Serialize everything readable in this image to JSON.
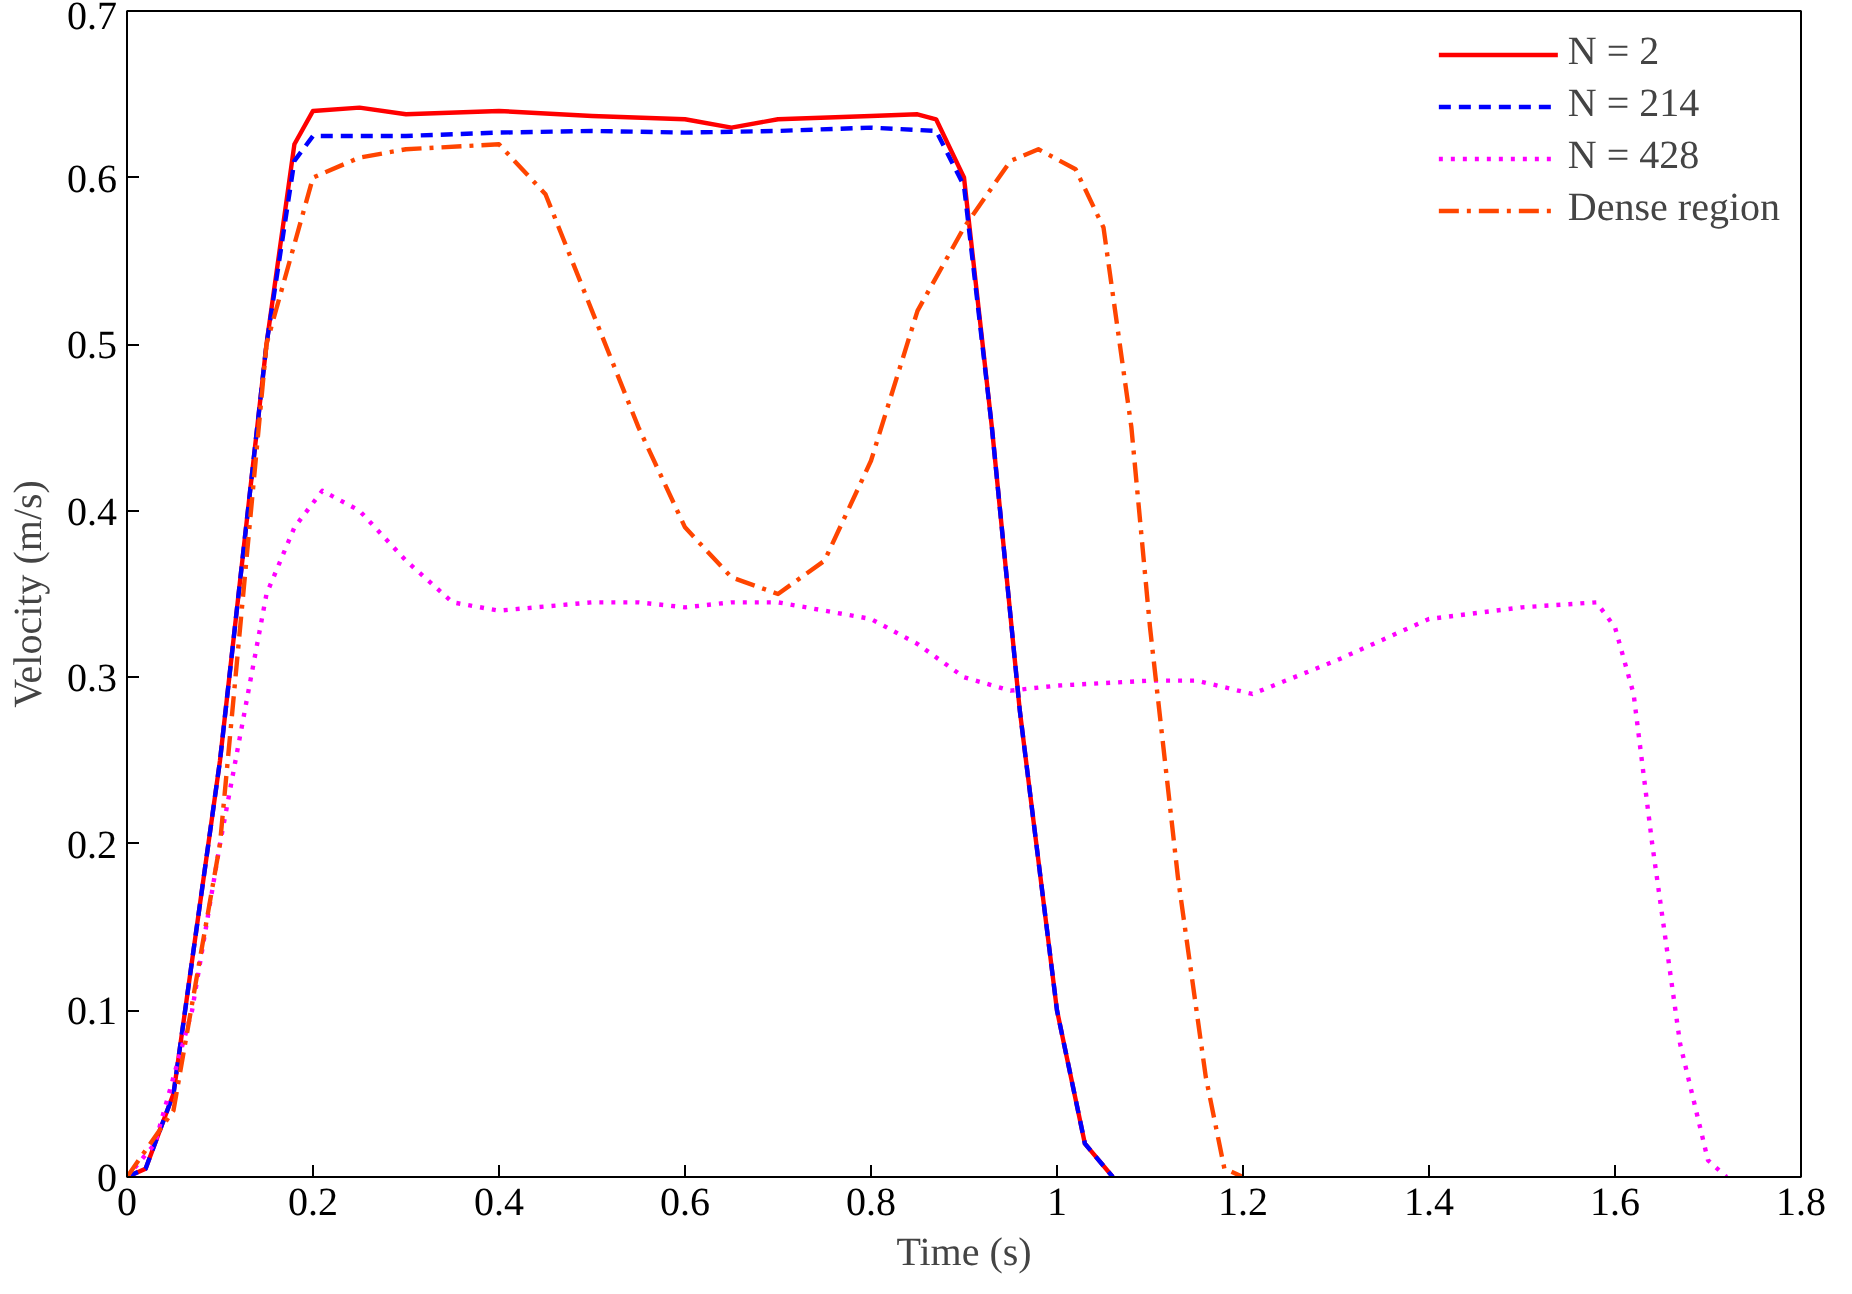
{
  "chart_data": {
    "type": "line",
    "xlabel": "Time (s)",
    "ylabel": "Velocity (m/s)",
    "xlim": [
      0,
      1.8
    ],
    "ylim": [
      0,
      0.7
    ],
    "xticks": [
      0,
      0.2,
      0.4,
      0.6,
      0.8,
      1,
      1.2,
      1.4,
      1.6,
      1.8
    ],
    "yticks": [
      0,
      0.1,
      0.2,
      0.3,
      0.4,
      0.5,
      0.6,
      0.7
    ],
    "grid": false,
    "legend": "top right",
    "series": [
      {
        "name": "N = 2",
        "color": "#ff0000",
        "line_style": "solid",
        "x": [
          0,
          0.02,
          0.05,
          0.1,
          0.15,
          0.18,
          0.2,
          0.25,
          0.3,
          0.4,
          0.5,
          0.6,
          0.65,
          0.7,
          0.8,
          0.85,
          0.87,
          0.9,
          0.93,
          0.96,
          1.0,
          1.03,
          1.06
        ],
        "values": [
          0,
          0.005,
          0.05,
          0.25,
          0.5,
          0.62,
          0.64,
          0.642,
          0.638,
          0.64,
          0.637,
          0.635,
          0.63,
          0.635,
          0.637,
          0.638,
          0.635,
          0.6,
          0.45,
          0.28,
          0.1,
          0.02,
          0
        ]
      },
      {
        "name": "N = 214",
        "color": "#0000ff",
        "line_style": "dashed",
        "x": [
          0,
          0.02,
          0.05,
          0.1,
          0.15,
          0.18,
          0.2,
          0.3,
          0.4,
          0.5,
          0.6,
          0.7,
          0.8,
          0.87,
          0.9,
          0.93,
          0.96,
          1.0,
          1.03,
          1.06
        ],
        "values": [
          0,
          0.005,
          0.05,
          0.25,
          0.5,
          0.61,
          0.625,
          0.625,
          0.627,
          0.628,
          0.627,
          0.628,
          0.63,
          0.628,
          0.595,
          0.45,
          0.28,
          0.1,
          0.02,
          0
        ]
      },
      {
        "name": "N = 428",
        "color": "#ff00ff",
        "line_style": "dotted",
        "x": [
          0,
          0.03,
          0.07,
          0.1,
          0.15,
          0.18,
          0.21,
          0.25,
          0.3,
          0.35,
          0.4,
          0.5,
          0.55,
          0.6,
          0.65,
          0.7,
          0.8,
          0.85,
          0.9,
          0.95,
          1.0,
          1.1,
          1.15,
          1.21,
          1.3,
          1.4,
          1.5,
          1.58,
          1.6,
          1.62,
          1.64,
          1.67,
          1.7,
          1.72
        ],
        "values": [
          0,
          0.02,
          0.1,
          0.2,
          0.35,
          0.39,
          0.412,
          0.4,
          0.37,
          0.345,
          0.34,
          0.345,
          0.345,
          0.342,
          0.345,
          0.345,
          0.335,
          0.32,
          0.3,
          0.292,
          0.295,
          0.298,
          0.298,
          0.29,
          0.31,
          0.335,
          0.342,
          0.345,
          0.33,
          0.29,
          0.2,
          0.08,
          0.01,
          0
        ]
      },
      {
        "name": "Dense region",
        "color": "#ff4500",
        "line_style": "dashdot",
        "x": [
          0,
          0.05,
          0.1,
          0.15,
          0.2,
          0.25,
          0.3,
          0.4,
          0.45,
          0.5,
          0.55,
          0.6,
          0.65,
          0.7,
          0.75,
          0.8,
          0.85,
          0.9,
          0.95,
          0.98,
          1.02,
          1.05,
          1.08,
          1.1,
          1.13,
          1.16,
          1.18,
          1.2
        ],
        "values": [
          0,
          0.04,
          0.2,
          0.5,
          0.6,
          0.612,
          0.617,
          0.62,
          0.59,
          0.52,
          0.45,
          0.39,
          0.36,
          0.35,
          0.37,
          0.43,
          0.52,
          0.57,
          0.61,
          0.617,
          0.605,
          0.57,
          0.45,
          0.33,
          0.18,
          0.06,
          0.005,
          0
        ]
      }
    ]
  }
}
